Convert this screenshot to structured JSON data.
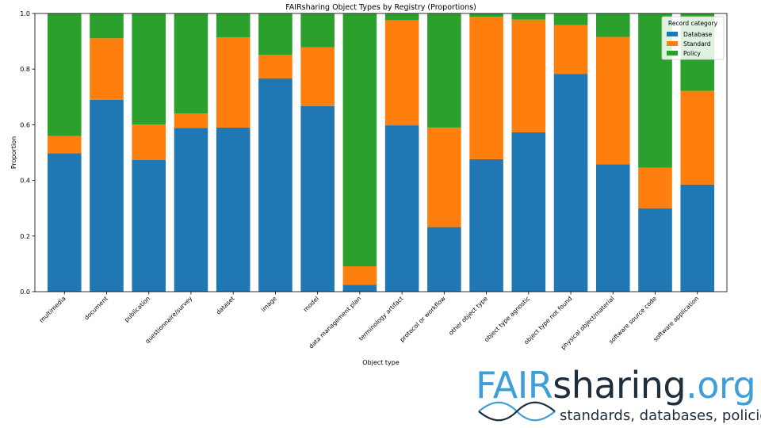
{
  "chart_data": {
    "type": "bar",
    "stacked": true,
    "title": "FAIRsharing Object Types by Registry (Proportions)",
    "xlabel": "Object type",
    "ylabel": "Proportion",
    "ylim": [
      0,
      1.0
    ],
    "yticks": [
      "0.0",
      "0.2",
      "0.4",
      "0.6",
      "0.8",
      "1.0"
    ],
    "categories": [
      "multimedia",
      "document",
      "publication",
      "questionnaire/survey",
      "dataset",
      "image",
      "model",
      "data management plan",
      "terminology artifact",
      "protocol or workflow",
      "other object type",
      "object type agnostic",
      "object type not found",
      "physical object/material",
      "software source code",
      "software application"
    ],
    "legend": {
      "title": "Record category",
      "position": "top-right"
    },
    "series": [
      {
        "name": "Database",
        "color": "#1f77b4",
        "values": [
          0.497,
          0.69,
          0.474,
          0.589,
          0.59,
          0.767,
          0.667,
          0.025,
          0.598,
          0.232,
          0.476,
          0.573,
          0.782,
          0.458,
          0.3,
          0.385
        ]
      },
      {
        "name": "Standard",
        "color": "#ff7f0e",
        "values": [
          0.063,
          0.221,
          0.127,
          0.052,
          0.324,
          0.084,
          0.211,
          0.066,
          0.378,
          0.358,
          0.512,
          0.405,
          0.176,
          0.458,
          0.146,
          0.337
        ]
      },
      {
        "name": "Policy",
        "color": "#2ca02c",
        "values": [
          0.44,
          0.089,
          0.399,
          0.359,
          0.086,
          0.149,
          0.122,
          0.909,
          0.024,
          0.41,
          0.012,
          0.022,
          0.042,
          0.084,
          0.554,
          0.278
        ]
      }
    ]
  },
  "logo": {
    "fair": "FAIR",
    "sharing": "sharing",
    "org": ".org",
    "tagline": "standards, databases, policies"
  }
}
